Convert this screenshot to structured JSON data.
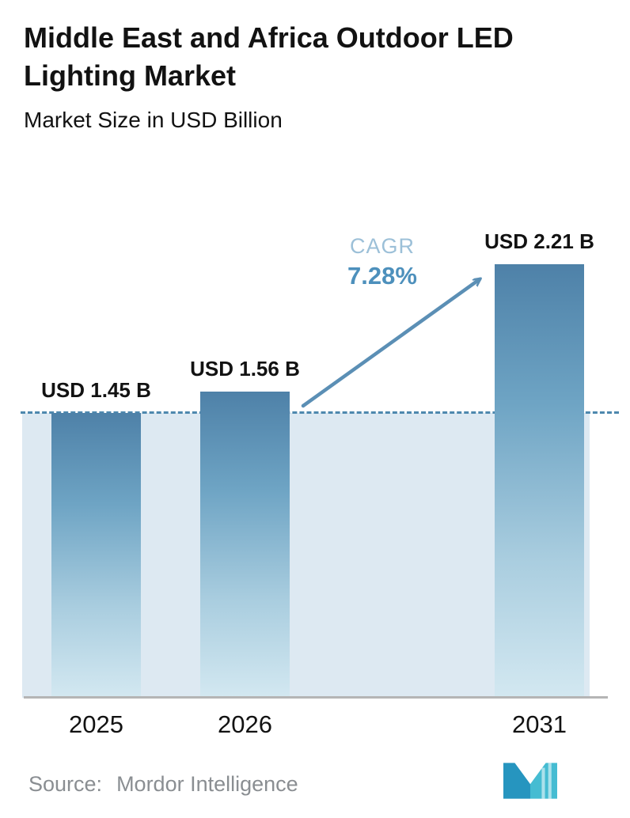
{
  "header": {
    "title": "Middle East and Africa Outdoor LED Lighting Market",
    "subtitle": "Market Size in USD Billion"
  },
  "chart_data": {
    "type": "bar",
    "title": "Middle East and Africa Outdoor LED Lighting Market",
    "subtitle": "Market Size in USD Billion",
    "categories": [
      "2025",
      "2026",
      "2031"
    ],
    "values": [
      1.45,
      1.56,
      2.21
    ],
    "value_labels": [
      "USD 1.45 B",
      "USD 1.56 B",
      "USD 2.21 B"
    ],
    "unit": "USD Billion",
    "ylim": [
      0,
      2.55
    ],
    "grid": false,
    "legend": "none",
    "annotation": {
      "label": "CAGR",
      "value": "7.28%"
    },
    "dashed_reference_value": 1.45,
    "colors": {
      "bar_gradient_top": "#4e81a8",
      "bar_gradient_bottom": "#d3e8f1",
      "band": "#dde9f2",
      "dashed_line": "#4d88ae",
      "arrow": "#5b8fb5",
      "cagr_label": "#9cc0d8",
      "cagr_value": "#4d90bc"
    }
  },
  "footer": {
    "source_label": "Source:",
    "source_value": "Mordor Intelligence",
    "logo": "mordor-intelligence-logo",
    "logo_colors": {
      "left": "#2695bf",
      "right": "#45bcd2"
    }
  }
}
